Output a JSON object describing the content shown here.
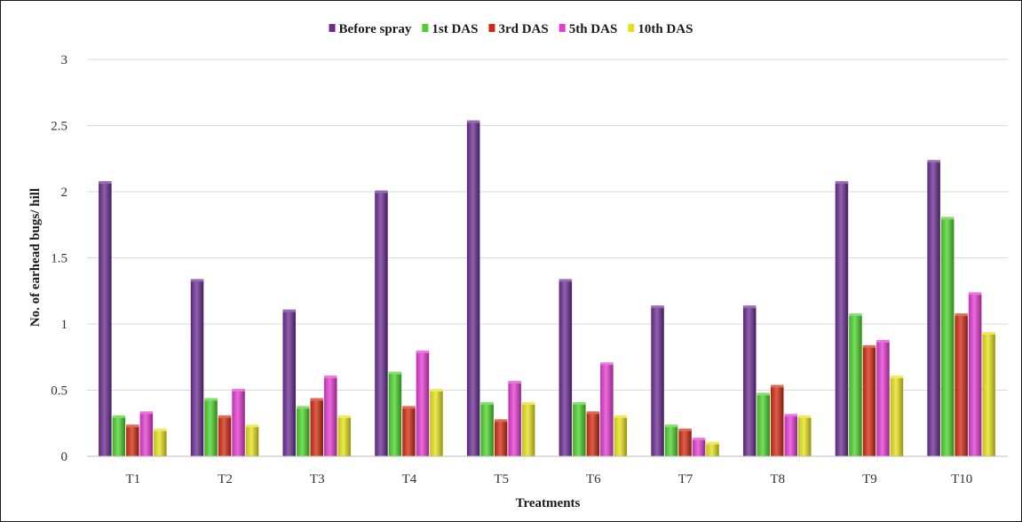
{
  "chart_data": {
    "type": "bar",
    "title": "",
    "xlabel": "Treatments",
    "ylabel": "No. of earhead bugs/ hill",
    "ylim": [
      0,
      3
    ],
    "yticks": [
      "0",
      "0.5",
      "1",
      "1.5",
      "2",
      "2.5",
      "3"
    ],
    "grid": true,
    "legend_position": "top",
    "categories": [
      "T1",
      "T2",
      "T3",
      "T4",
      "T5",
      "T6",
      "T7",
      "T8",
      "T9",
      "T10"
    ],
    "series": [
      {
        "name": "Before spray",
        "color": "#6a2c91",
        "values": [
          2.07,
          1.33,
          1.1,
          2.0,
          2.53,
          1.33,
          1.13,
          1.13,
          2.07,
          2.23
        ]
      },
      {
        "name": "1st DAS",
        "color": "#4bd12a",
        "values": [
          0.3,
          0.43,
          0.37,
          0.63,
          0.4,
          0.4,
          0.23,
          0.47,
          1.07,
          1.8
        ]
      },
      {
        "name": "3rd DAS",
        "color": "#d12a10",
        "values": [
          0.23,
          0.3,
          0.43,
          0.37,
          0.27,
          0.33,
          0.2,
          0.53,
          0.83,
          1.07
        ]
      },
      {
        "name": "5th DAS",
        "color": "#e33ad0",
        "values": [
          0.33,
          0.5,
          0.6,
          0.79,
          0.56,
          0.7,
          0.13,
          0.31,
          0.87,
          1.23
        ]
      },
      {
        "name": "10th DAS",
        "color": "#e6e21a",
        "values": [
          0.2,
          0.23,
          0.3,
          0.5,
          0.4,
          0.3,
          0.1,
          0.3,
          0.6,
          0.93
        ]
      }
    ]
  }
}
